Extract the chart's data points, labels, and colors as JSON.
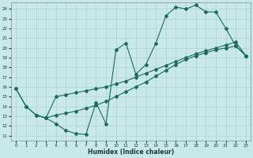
{
  "xlabel": "Humidex (Indice chaleur)",
  "xlim": [
    -0.5,
    23.5
  ],
  "ylim": [
    10.5,
    24.7
  ],
  "yticks": [
    11,
    12,
    13,
    14,
    15,
    16,
    17,
    18,
    19,
    20,
    21,
    22,
    23,
    24
  ],
  "xticks": [
    0,
    1,
    2,
    3,
    4,
    5,
    6,
    7,
    8,
    9,
    10,
    11,
    12,
    13,
    14,
    15,
    16,
    17,
    18,
    19,
    20,
    21,
    22,
    23
  ],
  "bg_color": "#c9e8e8",
  "grid_color": "#b0d4d4",
  "line_color": "#1a6b5a",
  "line1_x": [
    0,
    1,
    2,
    3,
    4,
    5,
    6,
    7,
    8,
    9,
    10,
    11,
    12,
    13,
    14,
    15,
    16,
    17,
    18,
    19,
    20,
    21,
    22,
    23
  ],
  "line1_y": [
    15.8,
    14.0,
    13.1,
    12.8,
    12.2,
    11.5,
    11.2,
    11.1,
    14.4,
    12.2,
    19.8,
    20.5,
    17.3,
    18.3,
    20.5,
    23.3,
    24.2,
    24.0,
    24.4,
    23.7,
    23.7,
    22.0,
    20.2,
    19.2
  ],
  "line2_x": [
    0,
    1,
    2,
    3,
    4,
    5,
    6,
    7,
    8,
    9,
    10,
    11,
    12,
    13,
    14,
    15,
    16,
    17,
    18,
    19,
    20,
    21,
    22,
    23
  ],
  "line2_y": [
    15.8,
    14.0,
    13.1,
    12.8,
    13.1,
    13.3,
    13.5,
    13.8,
    14.1,
    14.5,
    15.0,
    15.5,
    16.0,
    16.5,
    17.1,
    17.7,
    18.3,
    18.8,
    19.2,
    19.5,
    19.8,
    20.0,
    20.2,
    19.2
  ],
  "line3_x": [
    2,
    3,
    4,
    5,
    6,
    7,
    8,
    9,
    10,
    11,
    12,
    13,
    14,
    15,
    16,
    17,
    18,
    19,
    20,
    21,
    22,
    23
  ],
  "line3_y": [
    13.1,
    12.8,
    15.0,
    15.2,
    15.4,
    15.6,
    15.8,
    16.0,
    16.3,
    16.6,
    17.0,
    17.4,
    17.8,
    18.2,
    18.6,
    19.0,
    19.4,
    19.7,
    20.0,
    20.3,
    20.6,
    19.2
  ]
}
